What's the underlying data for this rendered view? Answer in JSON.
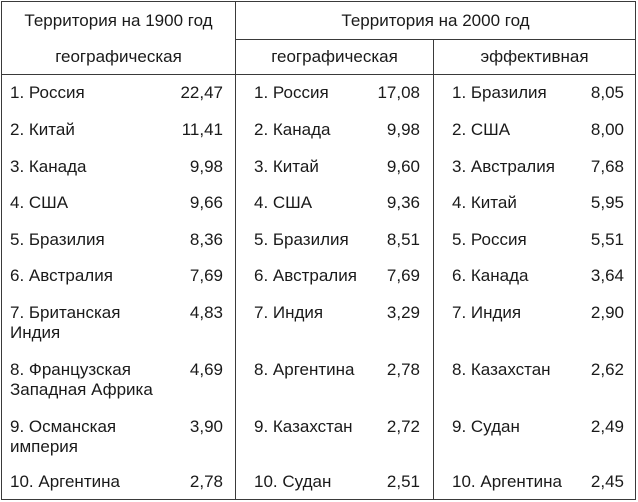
{
  "header": {
    "group_1900": "Территория на 1900 год",
    "group_2000": "Территория на 2000 год",
    "col_geo_1900": "географическая",
    "col_geo_2000": "географическая",
    "col_eff_2000": "эффективная"
  },
  "columns": {
    "geo_1900": [
      {
        "name": "1. Россия",
        "value": "22,47"
      },
      {
        "name": "2. Китай",
        "value": "11,41"
      },
      {
        "name": "3. Канада",
        "value": "9,98"
      },
      {
        "name": "4. США",
        "value": "9,66"
      },
      {
        "name": "5. Бразилия",
        "value": "8,36"
      },
      {
        "name": "6. Австралия",
        "value": "7,69"
      },
      {
        "name": "7. Британская\nИндия",
        "value": "4,83"
      },
      {
        "name": "8. Французская\nЗападная Африка",
        "value": "4,69"
      },
      {
        "name": "9. Османская\nимперия",
        "value": "3,90"
      },
      {
        "name": "10. Аргентина",
        "value": "2,78"
      }
    ],
    "geo_2000": [
      {
        "name": "1. Россия",
        "value": "17,08"
      },
      {
        "name": "2. Канада",
        "value": "9,98"
      },
      {
        "name": "3. Китай",
        "value": "9,60"
      },
      {
        "name": "4. США",
        "value": "9,36"
      },
      {
        "name": "5. Бразилия",
        "value": "8,51"
      },
      {
        "name": "6. Австралия",
        "value": "7,69"
      },
      {
        "name": "7. Индия",
        "value": "3,29"
      },
      {
        "name": "8. Аргентина",
        "value": "2,78"
      },
      {
        "name": "9. Казахстан",
        "value": "2,72"
      },
      {
        "name": "10. Судан",
        "value": "2,51"
      }
    ],
    "eff_2000": [
      {
        "name": "1. Бразилия",
        "value": "8,05"
      },
      {
        "name": "2. США",
        "value": "8,00"
      },
      {
        "name": "3. Австралия",
        "value": "7,68"
      },
      {
        "name": "4. Китай",
        "value": "5,95"
      },
      {
        "name": "5. Россия",
        "value": "5,51"
      },
      {
        "name": "6. Канада",
        "value": "3,64"
      },
      {
        "name": "7. Индия",
        "value": "2,90"
      },
      {
        "name": "8. Казахстан",
        "value": "2,62"
      },
      {
        "name": "9. Судан",
        "value": "2,49"
      },
      {
        "name": "10. Аргентина",
        "value": "2,45"
      }
    ]
  }
}
